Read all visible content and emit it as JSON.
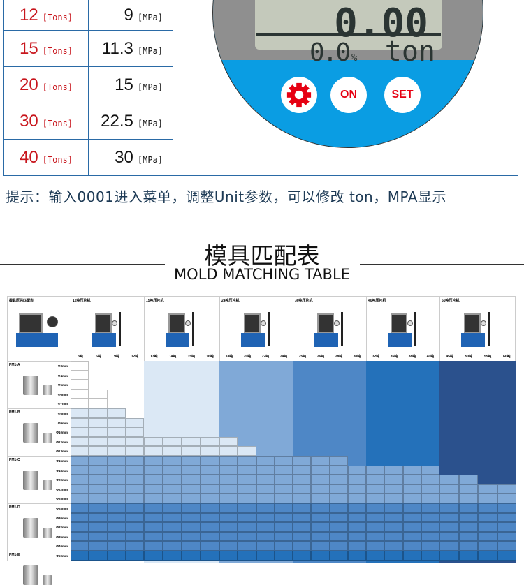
{
  "pressure_table": [
    {
      "tons": "12",
      "tons_unit": "[Tons]",
      "mpa": "9",
      "mpa_unit": "[MPa]"
    },
    {
      "tons": "15",
      "tons_unit": "[Tons]",
      "mpa": "11.3",
      "mpa_unit": "[MPa]"
    },
    {
      "tons": "20",
      "tons_unit": "[Tons]",
      "mpa": "15",
      "mpa_unit": "[MPa]"
    },
    {
      "tons": "30",
      "tons_unit": "[Tons]",
      "mpa": "22.5",
      "mpa_unit": "[MPa]"
    },
    {
      "tons": "40",
      "tons_unit": "[Tons]",
      "mpa": "30",
      "mpa_unit": "[MPa]"
    }
  ],
  "gauge": {
    "main_reading": "0.00",
    "percent": "0.0",
    "percent_sign": "%",
    "unit": "ton",
    "on_label": "ON",
    "set_label": "SET",
    "gear_icon": "gear-icon",
    "colors": {
      "grey": "#8f8f8f",
      "blue": "#0a9de3",
      "button_text": "#e60012"
    }
  },
  "hint": "提示：输入0001进入菜单，调整Unit参数，可以修改 ton，MPA显示",
  "section": {
    "title_cn": "模具匹配表",
    "title_en": "MOLD MATCHING TABLE"
  },
  "mold_table": {
    "corner_label": "模具压强匹配表",
    "groups": [
      {
        "title": "12吨压片机",
        "tons": [
          "3吨",
          "6吨",
          "9吨",
          "12吨"
        ],
        "color": "#ffffff"
      },
      {
        "title": "15吨压片机",
        "tons": [
          "13吨",
          "14吨",
          "15吨",
          "16吨"
        ],
        "color": "#dbe8f5"
      },
      {
        "title": "24吨压片机",
        "tons": [
          "18吨",
          "20吨",
          "22吨",
          "24吨"
        ],
        "color": "#80a9d7"
      },
      {
        "title": "30吨压片机",
        "tons": [
          "25吨",
          "26吨",
          "28吨",
          "30吨"
        ],
        "color": "#4e87c6"
      },
      {
        "title": "40吨压片机",
        "tons": [
          "32吨",
          "35吨",
          "38吨",
          "40吨"
        ],
        "color": "#2471ba"
      },
      {
        "title": "60吨压片机",
        "tons": [
          "45吨",
          "50吨",
          "55吨",
          "60吨"
        ],
        "color": "#2b518d"
      }
    ],
    "models": [
      {
        "name": "PM1-A",
        "diameters": [
          "Φ3mm",
          "Φ4mm",
          "Φ5mm",
          "Φ6mm",
          "Φ7mm"
        ],
        "filled": [
          1,
          1,
          1,
          2,
          2
        ],
        "color": "#ffffff"
      },
      {
        "name": "PM1-B",
        "diameters": [
          "Φ8mm",
          "Φ9mm",
          "Φ10mm",
          "Φ12mm",
          "Φ13mm"
        ],
        "filled": [
          3,
          4,
          4,
          9,
          10
        ],
        "color": "#dbe8f5"
      },
      {
        "name": "PM1-C",
        "diameters": [
          "Φ15mm",
          "Φ18mm",
          "Φ20mm",
          "Φ22mm",
          "Φ25mm"
        ],
        "filled": [
          15,
          20,
          22,
          24,
          24
        ],
        "color": "#80a9d7"
      },
      {
        "name": "PM1-D",
        "diameters": [
          "Φ28mm",
          "Φ30mm",
          "Φ32mm",
          "Φ35mm",
          "Φ40mm"
        ],
        "filled": [
          24,
          24,
          24,
          24,
          24
        ],
        "color": "#4e87c6"
      },
      {
        "name": "PM1-E",
        "diameters": [
          "Φ50mm"
        ],
        "filled": [
          24
        ],
        "color": "#2471ba"
      }
    ]
  }
}
